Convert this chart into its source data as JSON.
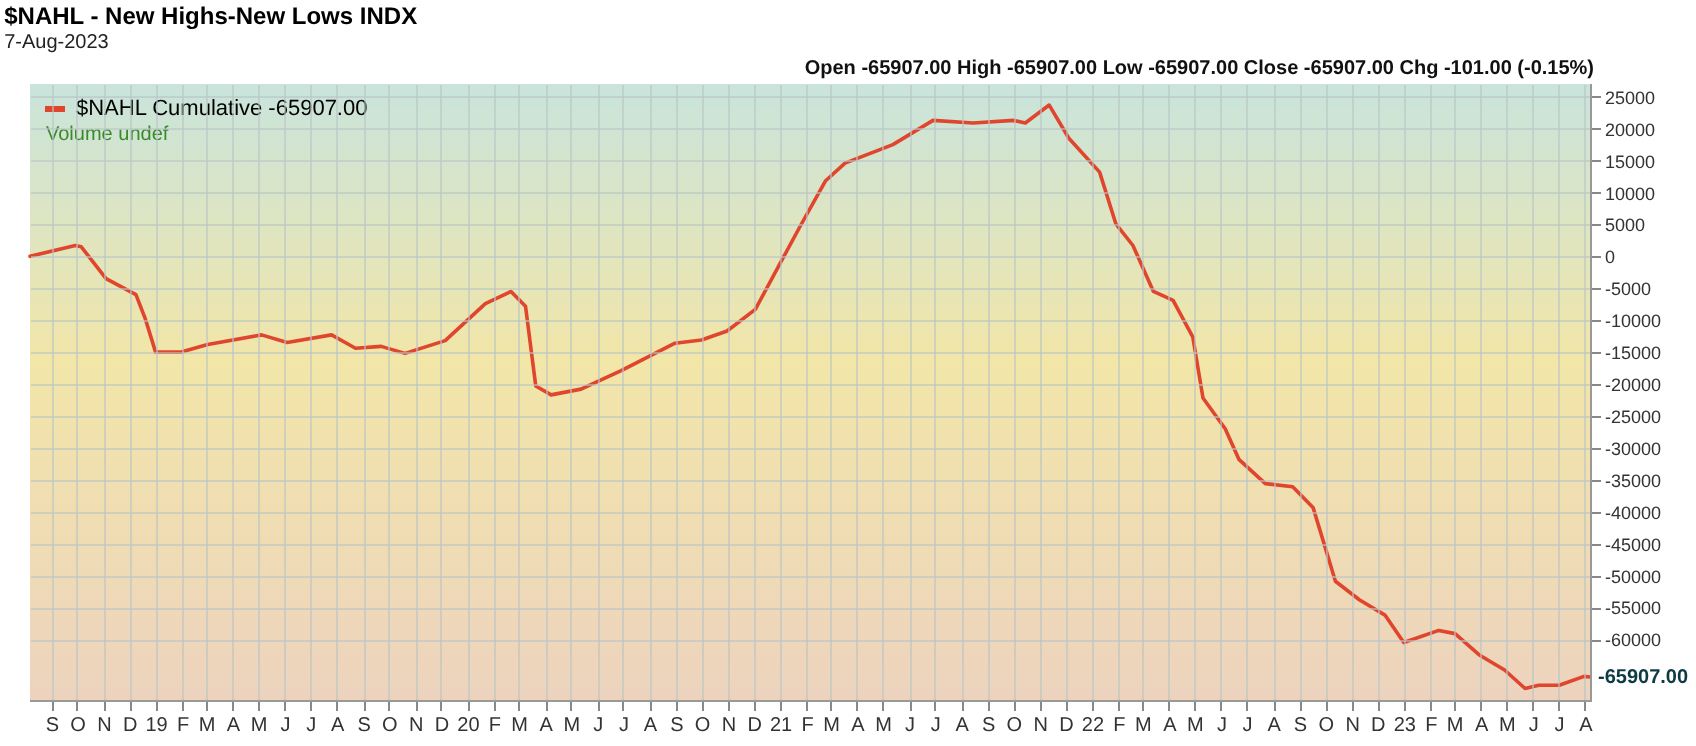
{
  "chart_data": {
    "type": "line",
    "title": "$NAHL - New Highs-New Lows INDX",
    "subtitle": "7-Aug-2023",
    "annotations": [
      "Open -65907.00  High -65907.00  Low -65907.00  Close -65907.00  Chg -101.00 (-0.15%)",
      "Volume undef",
      {
        "text": "-65907.00",
        "x": "2023-08-07",
        "y": -65907
      }
    ],
    "x": [
      "2018-08-07",
      "2018-09-29",
      "2018-10-06",
      "2018-11-04",
      "2018-12-09",
      "2018-12-20",
      "2019-01-01",
      "2019-01-31",
      "2019-03-03",
      "2019-05-05",
      "2019-06-04",
      "2019-07-26",
      "2019-08-23",
      "2019-09-22",
      "2019-10-20",
      "2019-12-06",
      "2020-01-22",
      "2020-02-21",
      "2020-03-09",
      "2020-03-21",
      "2020-04-08",
      "2020-05-13",
      "2020-06-29",
      "2020-08-31",
      "2020-10-01",
      "2020-10-31",
      "2020-12-03",
      "2021-01-01",
      "2021-01-24",
      "2021-02-23",
      "2021-03-18",
      "2021-05-13",
      "2021-06-29",
      "2021-08-15",
      "2021-10-01",
      "2021-10-15",
      "2021-11-12",
      "2021-12-05",
      "2022-01-10",
      "2022-01-29",
      "2022-02-18",
      "2022-03-14",
      "2022-04-06",
      "2022-04-29",
      "2022-05-11",
      "2022-06-06",
      "2022-06-22",
      "2022-07-23",
      "2022-08-24",
      "2022-09-17",
      "2022-10-13",
      "2022-11-10",
      "2022-12-10",
      "2023-01-01",
      "2023-02-11",
      "2023-03-02",
      "2023-03-30",
      "2023-04-29",
      "2023-05-23",
      "2023-06-08",
      "2023-07-02",
      "2023-07-31",
      "2023-08-07"
    ],
    "series": [
      {
        "name": "$NAHL Cumulative -65907.00",
        "color": "#e0452e",
        "values": [
          0,
          1700,
          1500,
          -3500,
          -6000,
          -9800,
          -15000,
          -15000,
          -13800,
          -12300,
          -13500,
          -12300,
          -14400,
          -14100,
          -15200,
          -13200,
          -7400,
          -5500,
          -7800,
          -20300,
          -21700,
          -20800,
          -17900,
          -13600,
          -13100,
          -11700,
          -8300,
          -1100,
          4600,
          11800,
          14600,
          17500,
          21300,
          20900,
          21300,
          20900,
          23700,
          18500,
          13200,
          5100,
          1700,
          -5500,
          -6900,
          -12600,
          -22200,
          -27000,
          -31800,
          -35600,
          -36100,
          -39400,
          -50900,
          -53800,
          -56200,
          -60500,
          -58600,
          -59100,
          -62400,
          -64800,
          -67700,
          -67200,
          -67200,
          -65800,
          -65907
        ]
      }
    ],
    "xlim": [
      "2018-08-07",
      "2023-08-07"
    ],
    "xticks": [
      {
        "value": "2018-09-01",
        "label": "S"
      },
      {
        "value": "2018-10-01",
        "label": "O"
      },
      {
        "value": "2018-11-01",
        "label": "N"
      },
      {
        "value": "2018-12-01",
        "label": "D"
      },
      {
        "value": "2019-01-01",
        "label": "19"
      },
      {
        "value": "2019-02-01",
        "label": "F"
      },
      {
        "value": "2019-03-01",
        "label": "M"
      },
      {
        "value": "2019-04-01",
        "label": "A"
      },
      {
        "value": "2019-05-01",
        "label": "M"
      },
      {
        "value": "2019-06-01",
        "label": "J"
      },
      {
        "value": "2019-07-01",
        "label": "J"
      },
      {
        "value": "2019-08-01",
        "label": "A"
      },
      {
        "value": "2019-09-01",
        "label": "S"
      },
      {
        "value": "2019-10-01",
        "label": "O"
      },
      {
        "value": "2019-11-01",
        "label": "N"
      },
      {
        "value": "2019-12-01",
        "label": "D"
      },
      {
        "value": "2020-01-01",
        "label": "20"
      },
      {
        "value": "2020-02-01",
        "label": "F"
      },
      {
        "value": "2020-03-01",
        "label": "M"
      },
      {
        "value": "2020-04-01",
        "label": "A"
      },
      {
        "value": "2020-05-01",
        "label": "M"
      },
      {
        "value": "2020-06-01",
        "label": "J"
      },
      {
        "value": "2020-07-01",
        "label": "J"
      },
      {
        "value": "2020-08-01",
        "label": "A"
      },
      {
        "value": "2020-09-01",
        "label": "S"
      },
      {
        "value": "2020-10-01",
        "label": "O"
      },
      {
        "value": "2020-11-01",
        "label": "N"
      },
      {
        "value": "2020-12-01",
        "label": "D"
      },
      {
        "value": "2021-01-01",
        "label": "21"
      },
      {
        "value": "2021-02-01",
        "label": "F"
      },
      {
        "value": "2021-03-01",
        "label": "M"
      },
      {
        "value": "2021-04-01",
        "label": "A"
      },
      {
        "value": "2021-05-01",
        "label": "M"
      },
      {
        "value": "2021-06-01",
        "label": "J"
      },
      {
        "value": "2021-07-01",
        "label": "J"
      },
      {
        "value": "2021-08-01",
        "label": "A"
      },
      {
        "value": "2021-09-01",
        "label": "S"
      },
      {
        "value": "2021-10-01",
        "label": "O"
      },
      {
        "value": "2021-11-01",
        "label": "N"
      },
      {
        "value": "2021-12-01",
        "label": "D"
      },
      {
        "value": "2022-01-01",
        "label": "22"
      },
      {
        "value": "2022-02-01",
        "label": "F"
      },
      {
        "value": "2022-03-01",
        "label": "M"
      },
      {
        "value": "2022-04-01",
        "label": "A"
      },
      {
        "value": "2022-05-01",
        "label": "M"
      },
      {
        "value": "2022-06-01",
        "label": "J"
      },
      {
        "value": "2022-07-01",
        "label": "J"
      },
      {
        "value": "2022-08-01",
        "label": "A"
      },
      {
        "value": "2022-09-01",
        "label": "S"
      },
      {
        "value": "2022-10-01",
        "label": "O"
      },
      {
        "value": "2022-11-01",
        "label": "N"
      },
      {
        "value": "2022-12-01",
        "label": "D"
      },
      {
        "value": "2023-01-01",
        "label": "23"
      },
      {
        "value": "2023-02-01",
        "label": "F"
      },
      {
        "value": "2023-03-01",
        "label": "M"
      },
      {
        "value": "2023-04-01",
        "label": "A"
      },
      {
        "value": "2023-05-01",
        "label": "M"
      },
      {
        "value": "2023-06-01",
        "label": "J"
      },
      {
        "value": "2023-07-01",
        "label": "J"
      },
      {
        "value": "2023-08-01",
        "label": "A"
      }
    ],
    "ylim": [
      -69500,
      27000
    ],
    "yticks": [
      25000,
      20000,
      15000,
      10000,
      5000,
      0,
      -5000,
      -10000,
      -15000,
      -20000,
      -25000,
      -30000,
      -35000,
      -40000,
      -45000,
      -50000,
      -55000,
      -60000
    ],
    "grid": true,
    "legend": "top left",
    "marker": "none",
    "line_style": "solid"
  }
}
